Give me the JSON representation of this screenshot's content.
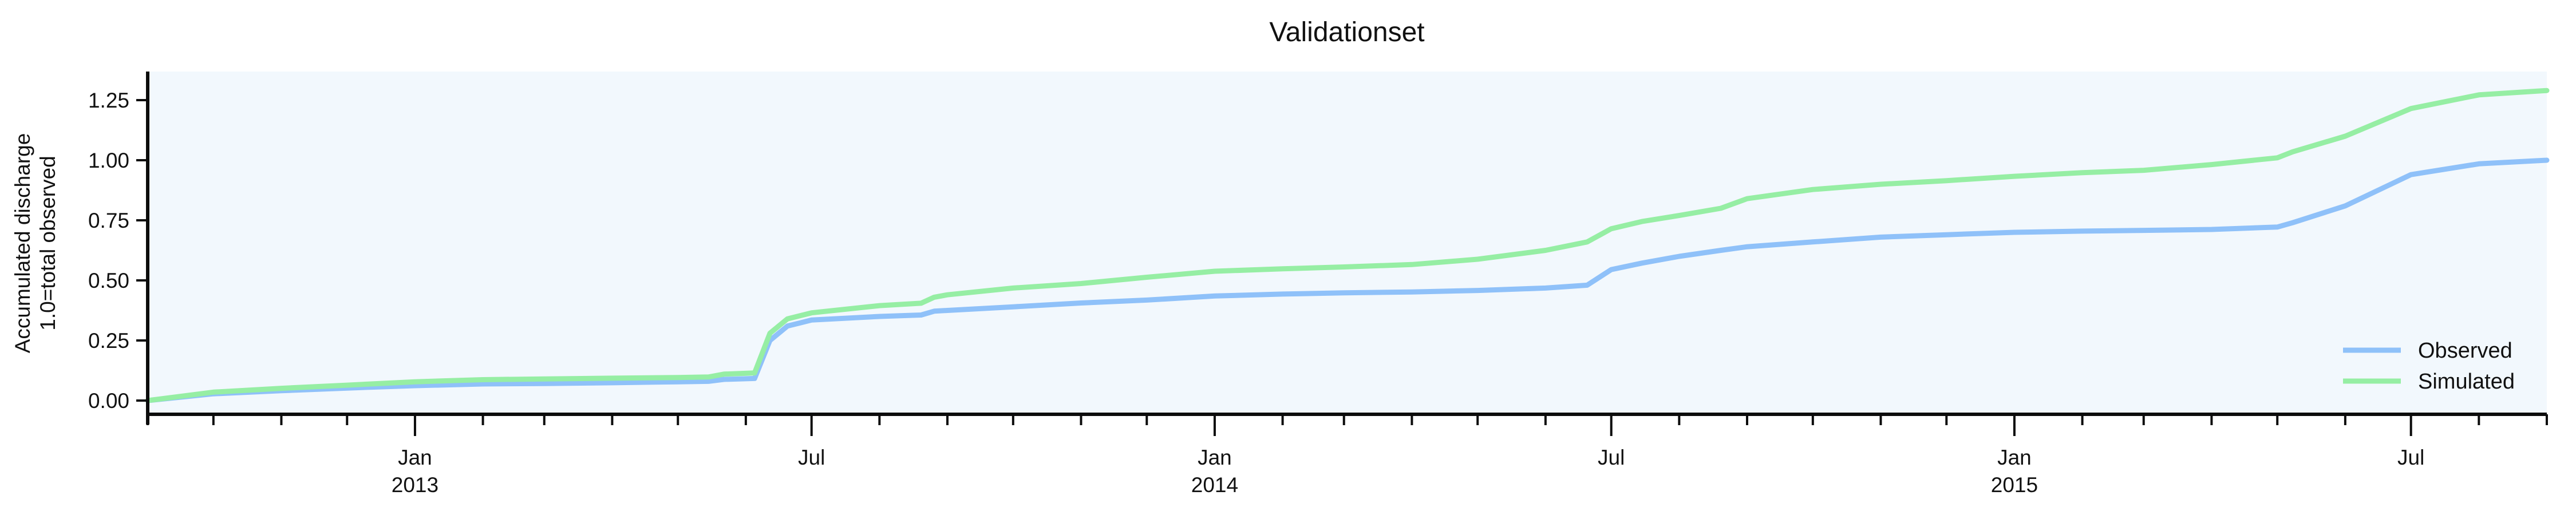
{
  "title": "Validationset",
  "legend": {
    "observed_label": "Observed",
    "simulated_label": "Simulated"
  },
  "y_axis": {
    "label_line1": "Accumulated discharge",
    "label_line2": "1.0=total observed",
    "ticks": [
      {
        "value": 0.0,
        "label": "0.00"
      },
      {
        "value": 0.25,
        "label": "0.25"
      },
      {
        "value": 0.5,
        "label": "0.50"
      },
      {
        "value": 0.75,
        "label": "0.75"
      },
      {
        "value": 1.0,
        "label": "1.00"
      },
      {
        "value": 1.25,
        "label": "1.25"
      }
    ]
  },
  "x_axis": {
    "start": "2012-09-01",
    "end": "2015-09-01",
    "minor_tick_interval": "month",
    "major_ticks": [
      {
        "date": "2013-01-01",
        "month": "Jan",
        "year": "2013"
      },
      {
        "date": "2013-07-01",
        "month": "Jul",
        "year": ""
      },
      {
        "date": "2014-01-01",
        "month": "Jan",
        "year": "2014"
      },
      {
        "date": "2014-07-01",
        "month": "Jul",
        "year": ""
      },
      {
        "date": "2015-01-01",
        "month": "Jan",
        "year": "2015"
      },
      {
        "date": "2015-07-01",
        "month": "Jul",
        "year": ""
      }
    ]
  },
  "colors": {
    "observed": "#8fc1f9",
    "simulated": "#96eea4",
    "plot_background": "#f2f8fd",
    "page_background": "#ffffff",
    "axis": "#0c0c0c",
    "text": "#111111"
  },
  "chart_data": {
    "type": "line",
    "title": "Validationset",
    "xlabel": "",
    "ylabel": "Accumulated discharge / 1.0=total observed",
    "x_domain": [
      "2012-09-01",
      "2015-09-01"
    ],
    "ylim": [
      0.0,
      1.25
    ],
    "grid": false,
    "legend_position": "bottom-right",
    "series": [
      {
        "name": "Observed",
        "color": "#8fc1f9",
        "points": [
          [
            "2012-09-01",
            0.0
          ],
          [
            "2012-10-01",
            0.028
          ],
          [
            "2012-11-01",
            0.041
          ],
          [
            "2012-12-01",
            0.052
          ],
          [
            "2013-01-01",
            0.062
          ],
          [
            "2013-02-01",
            0.069
          ],
          [
            "2013-03-01",
            0.071
          ],
          [
            "2013-04-01",
            0.074
          ],
          [
            "2013-05-01",
            0.078
          ],
          [
            "2013-05-15",
            0.08
          ],
          [
            "2013-05-22",
            0.088
          ],
          [
            "2013-06-05",
            0.092
          ],
          [
            "2013-06-12",
            0.25
          ],
          [
            "2013-06-20",
            0.31
          ],
          [
            "2013-07-01",
            0.335
          ],
          [
            "2013-08-01",
            0.35
          ],
          [
            "2013-08-20",
            0.356
          ],
          [
            "2013-08-26",
            0.372
          ],
          [
            "2013-09-01",
            0.375
          ],
          [
            "2013-10-01",
            0.39
          ],
          [
            "2013-11-01",
            0.406
          ],
          [
            "2013-12-01",
            0.418
          ],
          [
            "2014-01-01",
            0.435
          ],
          [
            "2014-02-01",
            0.443
          ],
          [
            "2014-03-01",
            0.448
          ],
          [
            "2014-04-01",
            0.452
          ],
          [
            "2014-05-01",
            0.458
          ],
          [
            "2014-06-01",
            0.468
          ],
          [
            "2014-06-20",
            0.48
          ],
          [
            "2014-07-01",
            0.545
          ],
          [
            "2014-07-15",
            0.572
          ],
          [
            "2014-08-01",
            0.6
          ],
          [
            "2014-08-20",
            0.625
          ],
          [
            "2014-09-01",
            0.64
          ],
          [
            "2014-10-01",
            0.66
          ],
          [
            "2014-11-01",
            0.68
          ],
          [
            "2014-12-01",
            0.69
          ],
          [
            "2015-01-01",
            0.7
          ],
          [
            "2015-02-01",
            0.705
          ],
          [
            "2015-03-01",
            0.708
          ],
          [
            "2015-04-01",
            0.712
          ],
          [
            "2015-05-01",
            0.722
          ],
          [
            "2015-05-08",
            0.74
          ],
          [
            "2015-06-01",
            0.81
          ],
          [
            "2015-07-01",
            0.94
          ],
          [
            "2015-08-01",
            0.985
          ],
          [
            "2015-09-01",
            1.0
          ]
        ]
      },
      {
        "name": "Simulated",
        "color": "#96eea4",
        "points": [
          [
            "2012-09-01",
            0.0
          ],
          [
            "2012-10-01",
            0.035
          ],
          [
            "2012-11-01",
            0.051
          ],
          [
            "2012-12-01",
            0.064
          ],
          [
            "2013-01-01",
            0.078
          ],
          [
            "2013-02-01",
            0.087
          ],
          [
            "2013-03-01",
            0.09
          ],
          [
            "2013-04-01",
            0.093
          ],
          [
            "2013-05-01",
            0.096
          ],
          [
            "2013-05-15",
            0.098
          ],
          [
            "2013-05-22",
            0.11
          ],
          [
            "2013-06-05",
            0.115
          ],
          [
            "2013-06-12",
            0.28
          ],
          [
            "2013-06-20",
            0.34
          ],
          [
            "2013-07-01",
            0.365
          ],
          [
            "2013-08-01",
            0.395
          ],
          [
            "2013-08-20",
            0.405
          ],
          [
            "2013-08-26",
            0.43
          ],
          [
            "2013-09-01",
            0.44
          ],
          [
            "2013-10-01",
            0.468
          ],
          [
            "2013-11-01",
            0.487
          ],
          [
            "2013-12-01",
            0.513
          ],
          [
            "2014-01-01",
            0.538
          ],
          [
            "2014-02-01",
            0.548
          ],
          [
            "2014-03-01",
            0.556
          ],
          [
            "2014-04-01",
            0.566
          ],
          [
            "2014-05-01",
            0.588
          ],
          [
            "2014-06-01",
            0.625
          ],
          [
            "2014-06-20",
            0.66
          ],
          [
            "2014-07-01",
            0.715
          ],
          [
            "2014-07-15",
            0.745
          ],
          [
            "2014-08-01",
            0.77
          ],
          [
            "2014-08-20",
            0.8
          ],
          [
            "2014-09-01",
            0.84
          ],
          [
            "2014-10-01",
            0.878
          ],
          [
            "2014-11-01",
            0.9
          ],
          [
            "2014-12-01",
            0.915
          ],
          [
            "2015-01-01",
            0.933
          ],
          [
            "2015-02-01",
            0.948
          ],
          [
            "2015-03-01",
            0.958
          ],
          [
            "2015-04-01",
            0.982
          ],
          [
            "2015-05-01",
            1.01
          ],
          [
            "2015-05-08",
            1.035
          ],
          [
            "2015-06-01",
            1.1
          ],
          [
            "2015-07-01",
            1.215
          ],
          [
            "2015-08-01",
            1.272
          ],
          [
            "2015-09-01",
            1.29
          ]
        ]
      }
    ]
  }
}
